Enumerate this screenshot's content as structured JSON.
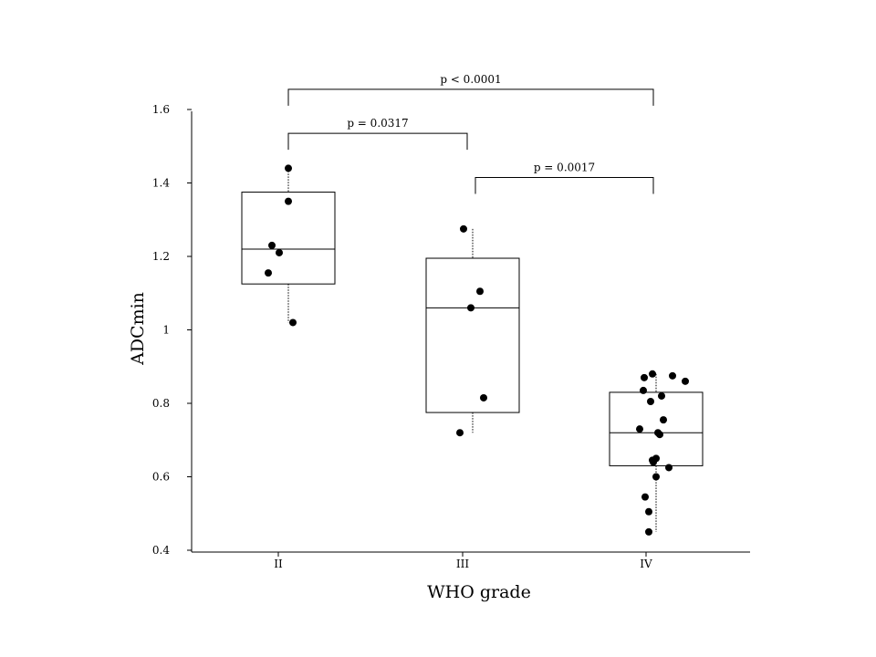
{
  "chart_data": {
    "type": "box",
    "title": "",
    "xlabel": "WHO grade",
    "ylabel": "ADCmin",
    "ylim": [
      0.4,
      1.6
    ],
    "yticks": [
      {
        "value": 1.6,
        "label": "1.6"
      },
      {
        "value": 1.4,
        "label": "1.4"
      },
      {
        "value": 1.2,
        "label": "1.2"
      },
      {
        "value": 1.0,
        "label": "1"
      },
      {
        "value": 0.8,
        "label": "0.8"
      },
      {
        "value": 0.6,
        "label": "0.6"
      },
      {
        "value": 0.4,
        "label": "0.4"
      }
    ],
    "categories": [
      "II",
      "III",
      "IV"
    ],
    "boxes": [
      {
        "category": "II",
        "q1": 1.125,
        "median": 1.22,
        "q3": 1.375,
        "whisker_low": 1.02,
        "whisker_high": 1.44
      },
      {
        "category": "III",
        "q1": 0.775,
        "median": 1.06,
        "q3": 1.195,
        "whisker_low": 0.72,
        "whisker_high": 1.275
      },
      {
        "category": "IV",
        "q1": 0.63,
        "median": 0.72,
        "q3": 0.83,
        "whisker_low": 0.45,
        "whisker_high": 0.88
      }
    ],
    "points": [
      {
        "category": "II",
        "values": [
          1.44,
          1.35,
          1.23,
          1.21,
          1.155,
          1.02
        ]
      },
      {
        "category": "III",
        "values": [
          1.275,
          1.105,
          1.06,
          0.815,
          0.72
        ]
      },
      {
        "category": "IV",
        "values": [
          0.88,
          0.875,
          0.87,
          0.86,
          0.835,
          0.82,
          0.805,
          0.755,
          0.73,
          0.72,
          0.715,
          0.65,
          0.645,
          0.64,
          0.625,
          0.6,
          0.545,
          0.505,
          0.45
        ]
      }
    ],
    "comparisons": [
      {
        "from": "II",
        "to": "IV",
        "label": "p < 0.0001",
        "level": 1.655
      },
      {
        "from": "II",
        "to": "III",
        "label": "p = 0.0317",
        "level": 1.535
      },
      {
        "from": "III",
        "to": "IV",
        "label": "p = 0.0017",
        "level": 1.415
      }
    ],
    "grid": false,
    "legend": "none"
  }
}
